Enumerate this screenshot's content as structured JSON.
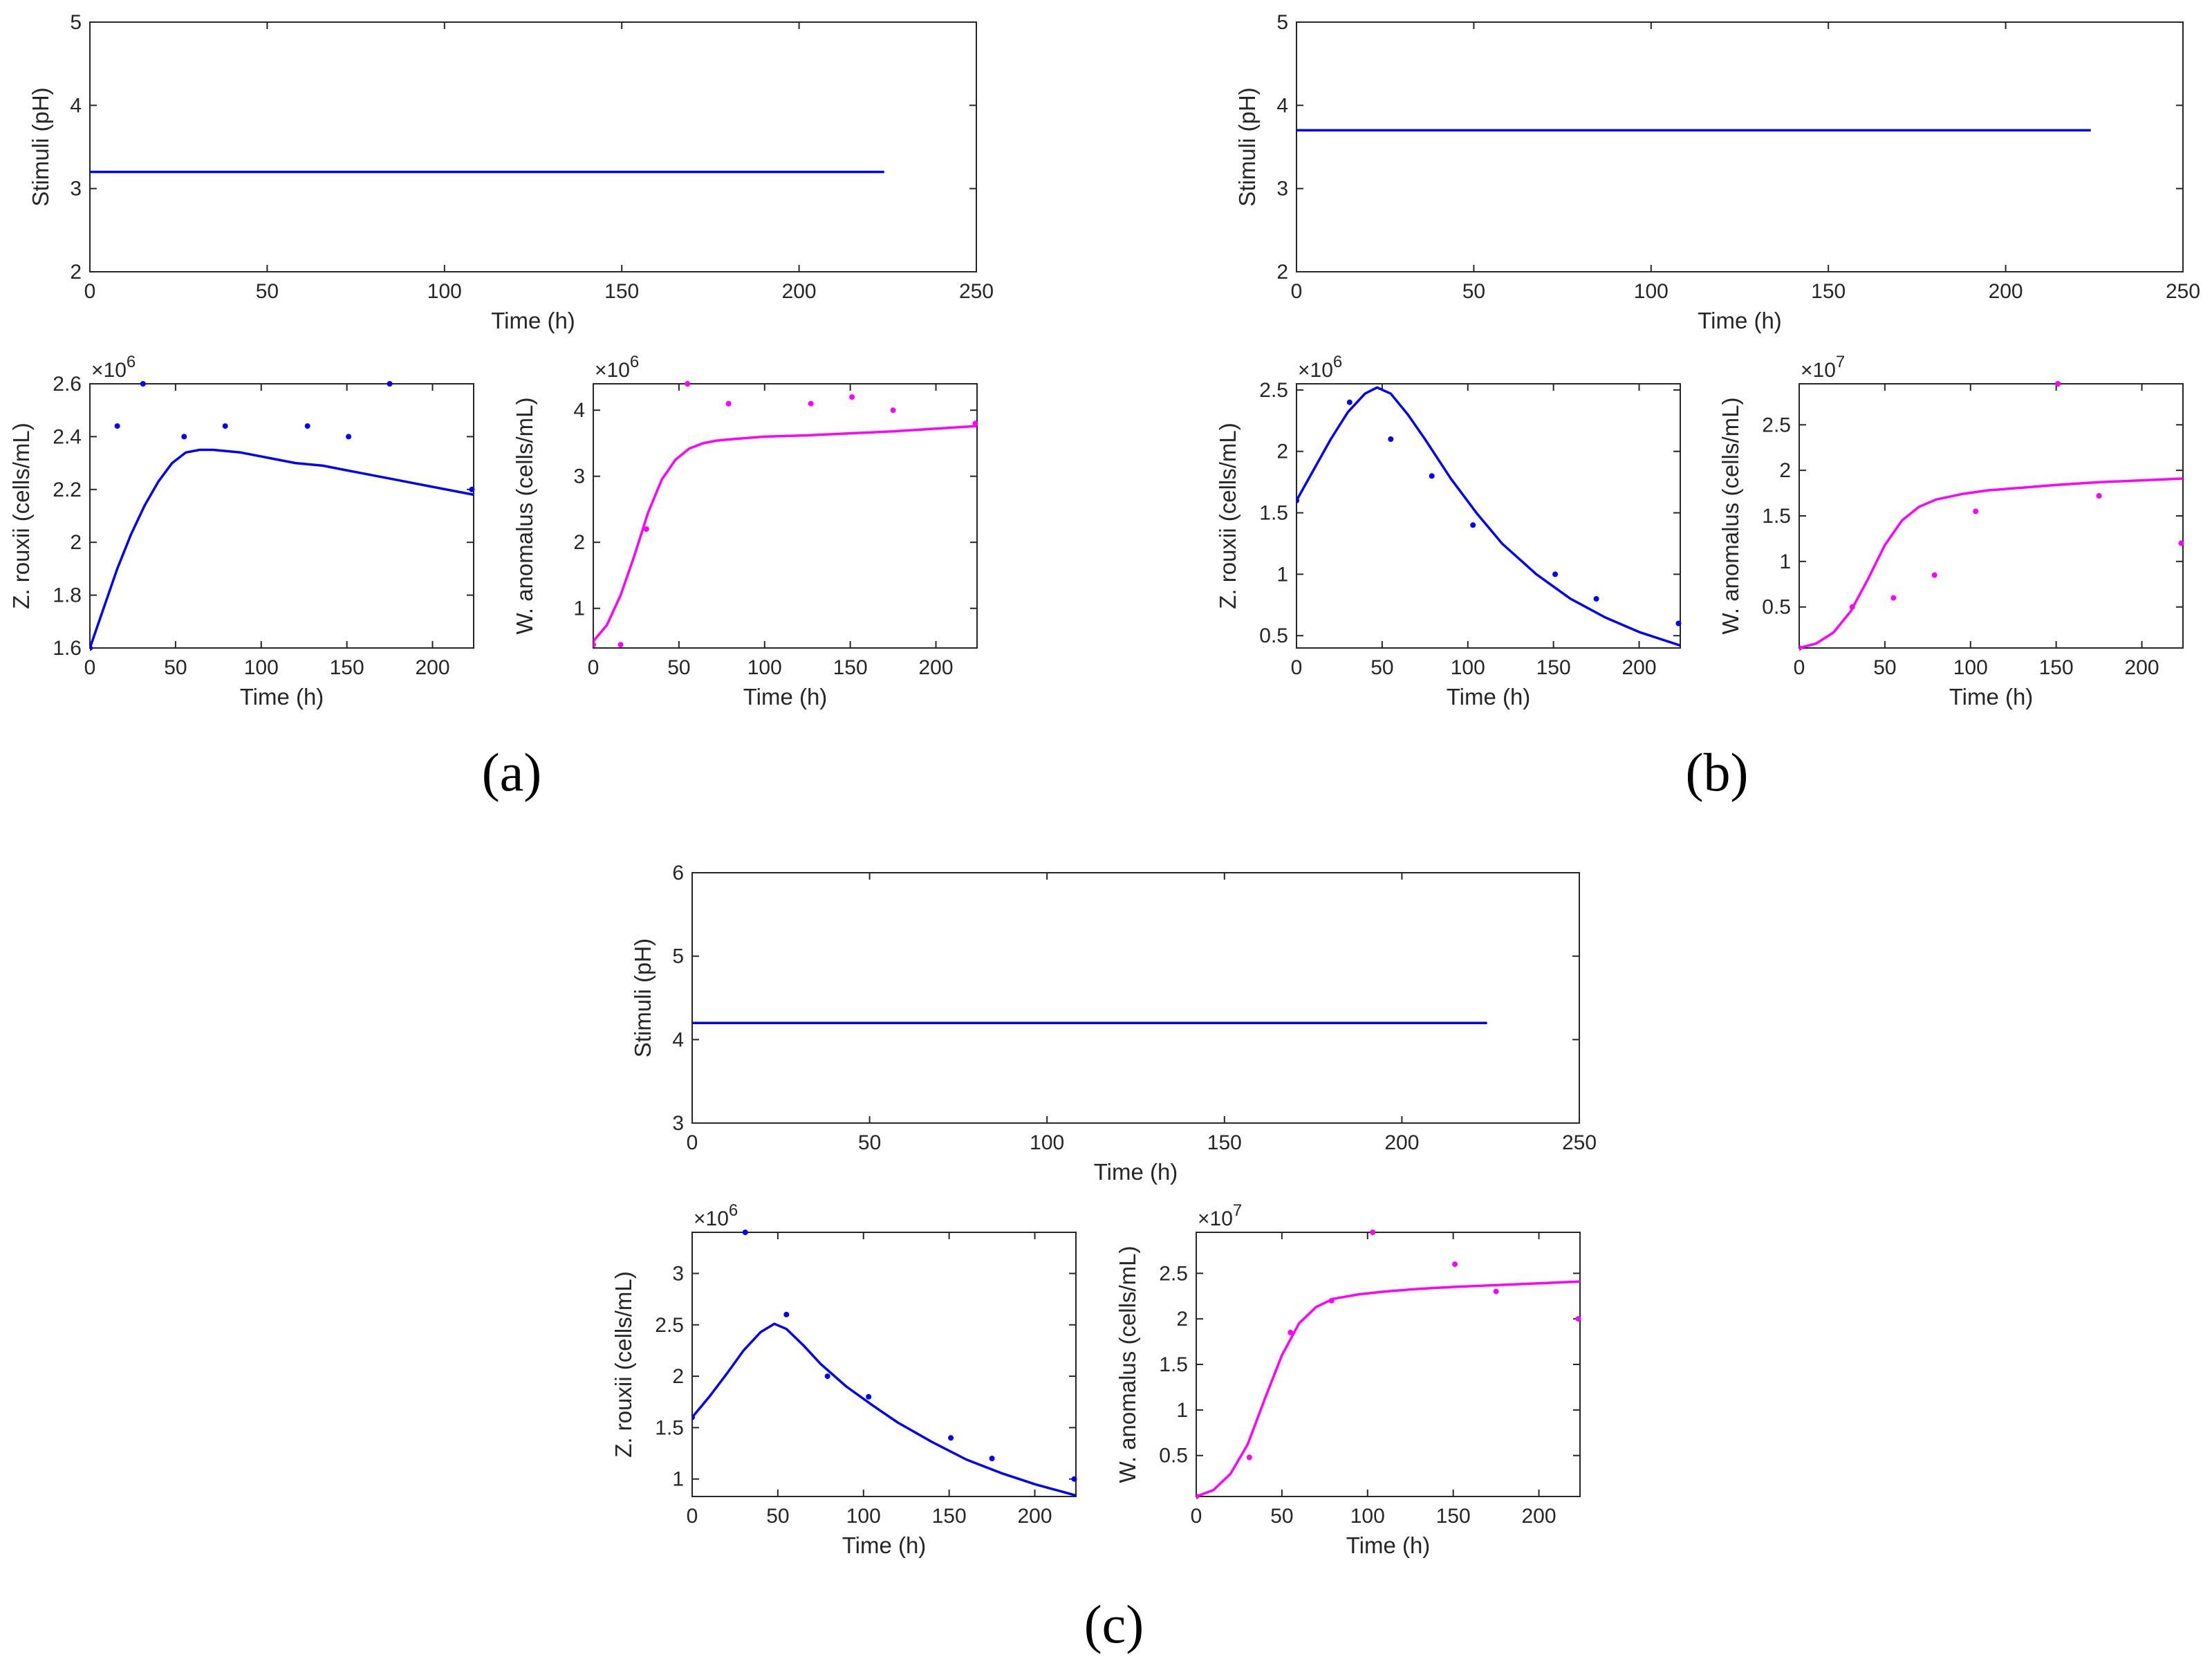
{
  "figure": {
    "panels": [
      {
        "id": "a",
        "label_text": "(a)"
      },
      {
        "id": "b",
        "label_text": "(b)"
      },
      {
        "id": "c",
        "label_text": "(c)"
      }
    ]
  },
  "colors": {
    "zr": "#0000ff",
    "wa": "#ff00ff",
    "stim": "#0000ff",
    "axis": "#262626"
  },
  "chart_data": [
    {
      "id": "a-stim",
      "type": "line",
      "title": "",
      "xlabel": "Time (h)",
      "ylabel": "Stimuli (pH)",
      "xlim": [
        0,
        250
      ],
      "ylim": [
        2,
        5
      ],
      "xticks": [
        0,
        50,
        100,
        150,
        200,
        250
      ],
      "yticks": [
        2,
        3,
        4,
        5
      ],
      "multiplier": "",
      "series": [
        {
          "name": "pH",
          "color": "#0000ff",
          "line": [
            [
              0,
              3.2
            ],
            [
              224,
              3.2
            ]
          ]
        }
      ]
    },
    {
      "id": "a-zr",
      "type": "line",
      "title": "",
      "xlabel": "Time (h)",
      "ylabel": "Z. rouxii (cells/mL)",
      "xlim": [
        0,
        224
      ],
      "ylim": [
        1.6,
        2.6
      ],
      "xticks": [
        0,
        50,
        100,
        150,
        200
      ],
      "yticks": [
        1.6,
        1.8,
        2,
        2.2,
        2.4,
        2.6
      ],
      "multiplier": "6",
      "series": [
        {
          "name": "Z. rouxii",
          "color": "#0000ff",
          "line": [
            [
              0,
              1.6
            ],
            [
              8,
              1.75
            ],
            [
              16,
              1.9
            ],
            [
              24,
              2.03
            ],
            [
              32,
              2.14
            ],
            [
              40,
              2.23
            ],
            [
              48,
              2.3
            ],
            [
              56,
              2.34
            ],
            [
              64,
              2.35
            ],
            [
              72,
              2.35
            ],
            [
              88,
              2.34
            ],
            [
              104,
              2.32
            ],
            [
              120,
              2.3
            ],
            [
              136,
              2.29
            ],
            [
              152,
              2.27
            ],
            [
              168,
              2.25
            ],
            [
              184,
              2.23
            ],
            [
              200,
              2.21
            ],
            [
              224,
              2.18
            ]
          ],
          "points": [
            [
              0,
              1.6
            ],
            [
              16,
              2.44
            ],
            [
              31,
              2.6
            ],
            [
              55,
              2.4
            ],
            [
              79,
              2.44
            ],
            [
              127,
              2.44
            ],
            [
              151,
              2.4
            ],
            [
              175,
              2.6
            ],
            [
              223,
              2.2
            ]
          ]
        }
      ]
    },
    {
      "id": "a-wa",
      "type": "line",
      "title": "",
      "xlabel": "Time (h)",
      "ylabel": "W. anomalus (cells/mL)",
      "xlim": [
        0,
        224
      ],
      "ylim": [
        0.4,
        4.4
      ],
      "xticks": [
        0,
        50,
        100,
        150,
        200
      ],
      "yticks": [
        1,
        2,
        3,
        4
      ],
      "multiplier": "6",
      "series": [
        {
          "name": "W. anomalus",
          "color": "#ff00ff",
          "line": [
            [
              0,
              0.5
            ],
            [
              8,
              0.75
            ],
            [
              16,
              1.2
            ],
            [
              24,
              1.8
            ],
            [
              32,
              2.45
            ],
            [
              40,
              2.95
            ],
            [
              48,
              3.25
            ],
            [
              56,
              3.42
            ],
            [
              64,
              3.5
            ],
            [
              72,
              3.54
            ],
            [
              80,
              3.56
            ],
            [
              100,
              3.6
            ],
            [
              125,
              3.62
            ],
            [
              150,
              3.65
            ],
            [
              175,
              3.68
            ],
            [
              200,
              3.72
            ],
            [
              224,
              3.76
            ]
          ],
          "points": [
            [
              0,
              0.45
            ],
            [
              16,
              0.45
            ],
            [
              31,
              2.2
            ],
            [
              55,
              4.4
            ],
            [
              79,
              4.1
            ],
            [
              127,
              4.1
            ],
            [
              151,
              4.2
            ],
            [
              175,
              4.0
            ],
            [
              223,
              3.8
            ]
          ]
        }
      ]
    },
    {
      "id": "b-stim",
      "type": "line",
      "title": "",
      "xlabel": "Time (h)",
      "ylabel": "Stimuli (pH)",
      "xlim": [
        0,
        250
      ],
      "ylim": [
        2,
        5
      ],
      "xticks": [
        0,
        50,
        100,
        150,
        200,
        250
      ],
      "yticks": [
        2,
        3,
        4,
        5
      ],
      "multiplier": "",
      "series": [
        {
          "name": "pH",
          "color": "#0000ff",
          "line": [
            [
              0,
              3.7
            ],
            [
              224,
              3.7
            ]
          ]
        }
      ]
    },
    {
      "id": "b-zr",
      "type": "line",
      "title": "",
      "xlabel": "Time (h)",
      "ylabel": "Z. rouxii (cells/mL)",
      "xlim": [
        0,
        224
      ],
      "ylim": [
        0.4,
        2.55
      ],
      "xticks": [
        0,
        50,
        100,
        150,
        200
      ],
      "yticks": [
        0.5,
        1,
        1.5,
        2,
        2.5
      ],
      "multiplier": "6",
      "series": [
        {
          "name": "Z. rouxii",
          "color": "#0000ff",
          "line": [
            [
              0,
              1.6
            ],
            [
              10,
              1.85
            ],
            [
              20,
              2.1
            ],
            [
              30,
              2.32
            ],
            [
              40,
              2.47
            ],
            [
              47,
              2.52
            ],
            [
              55,
              2.47
            ],
            [
              65,
              2.3
            ],
            [
              75,
              2.1
            ],
            [
              90,
              1.78
            ],
            [
              105,
              1.5
            ],
            [
              120,
              1.25
            ],
            [
              140,
              1.0
            ],
            [
              160,
              0.8
            ],
            [
              180,
              0.65
            ],
            [
              200,
              0.53
            ],
            [
              224,
              0.42
            ]
          ],
          "points": [
            [
              0,
              1.6
            ],
            [
              31,
              2.4
            ],
            [
              55,
              2.1
            ],
            [
              79,
              1.8
            ],
            [
              103,
              1.4
            ],
            [
              151,
              1.0
            ],
            [
              175,
              0.8
            ],
            [
              223,
              0.6
            ]
          ]
        }
      ]
    },
    {
      "id": "b-wa",
      "type": "line",
      "title": "",
      "xlabel": "Time (h)",
      "ylabel": "W. anomalus (cells/mL)",
      "xlim": [
        0,
        224
      ],
      "ylim": [
        0.05,
        2.95
      ],
      "xticks": [
        0,
        50,
        100,
        150,
        200
      ],
      "yticks": [
        0.5,
        1,
        1.5,
        2,
        2.5
      ],
      "multiplier": "7",
      "series": [
        {
          "name": "W. anomalus",
          "color": "#ff00ff",
          "line": [
            [
              0,
              0.05
            ],
            [
              10,
              0.1
            ],
            [
              20,
              0.22
            ],
            [
              30,
              0.45
            ],
            [
              40,
              0.8
            ],
            [
              50,
              1.18
            ],
            [
              60,
              1.45
            ],
            [
              70,
              1.6
            ],
            [
              80,
              1.68
            ],
            [
              95,
              1.74
            ],
            [
              110,
              1.78
            ],
            [
              130,
              1.81
            ],
            [
              150,
              1.84
            ],
            [
              175,
              1.87
            ],
            [
              200,
              1.89
            ],
            [
              224,
              1.91
            ]
          ],
          "points": [
            [
              0,
              0.05
            ],
            [
              31,
              0.5
            ],
            [
              55,
              0.6
            ],
            [
              79,
              0.85
            ],
            [
              103,
              1.55
            ],
            [
              151,
              2.95
            ],
            [
              175,
              1.72
            ],
            [
              223,
              1.2
            ]
          ]
        }
      ]
    },
    {
      "id": "c-stim",
      "type": "line",
      "title": "",
      "xlabel": "Time (h)",
      "ylabel": "Stimuli (pH)",
      "xlim": [
        0,
        250
      ],
      "ylim": [
        3,
        6
      ],
      "xticks": [
        0,
        50,
        100,
        150,
        200,
        250
      ],
      "yticks": [
        3,
        4,
        5,
        6
      ],
      "multiplier": "",
      "series": [
        {
          "name": "pH",
          "color": "#0000ff",
          "line": [
            [
              0,
              4.2
            ],
            [
              224,
              4.2
            ]
          ]
        }
      ]
    },
    {
      "id": "c-zr",
      "type": "line",
      "title": "",
      "xlabel": "Time (h)",
      "ylabel": "Z. rouxii (cells/mL)",
      "xlim": [
        0,
        224
      ],
      "ylim": [
        0.83,
        3.4
      ],
      "xticks": [
        0,
        50,
        100,
        150,
        200
      ],
      "yticks": [
        1,
        1.5,
        2,
        2.5,
        3
      ],
      "multiplier": "6",
      "series": [
        {
          "name": "Z. rouxii",
          "color": "#0000ff",
          "line": [
            [
              0,
              1.6
            ],
            [
              10,
              1.8
            ],
            [
              20,
              2.02
            ],
            [
              30,
              2.25
            ],
            [
              40,
              2.43
            ],
            [
              48,
              2.51
            ],
            [
              55,
              2.46
            ],
            [
              65,
              2.3
            ],
            [
              75,
              2.12
            ],
            [
              90,
              1.9
            ],
            [
              105,
              1.72
            ],
            [
              120,
              1.55
            ],
            [
              140,
              1.36
            ],
            [
              160,
              1.19
            ],
            [
              180,
              1.06
            ],
            [
              200,
              0.95
            ],
            [
              224,
              0.84
            ]
          ],
          "points": [
            [
              0,
              1.6
            ],
            [
              31,
              3.4
            ],
            [
              55,
              2.6
            ],
            [
              79,
              2.0
            ],
            [
              103,
              1.8
            ],
            [
              151,
              1.4
            ],
            [
              175,
              1.2
            ],
            [
              223,
              1.0
            ]
          ]
        }
      ]
    },
    {
      "id": "c-wa",
      "type": "line",
      "title": "",
      "xlabel": "Time (h)",
      "ylabel": "W. anomalus (cells/mL)",
      "xlim": [
        0,
        224
      ],
      "ylim": [
        0.05,
        2.95
      ],
      "xticks": [
        0,
        50,
        100,
        150,
        200
      ],
      "yticks": [
        0.5,
        1,
        1.5,
        2,
        2.5
      ],
      "multiplier": "7",
      "series": [
        {
          "name": "W. anomalus",
          "color": "#ff00ff",
          "line": [
            [
              0,
              0.05
            ],
            [
              10,
              0.12
            ],
            [
              20,
              0.3
            ],
            [
              30,
              0.62
            ],
            [
              40,
              1.12
            ],
            [
              50,
              1.6
            ],
            [
              60,
              1.95
            ],
            [
              70,
              2.13
            ],
            [
              80,
              2.22
            ],
            [
              95,
              2.27
            ],
            [
              110,
              2.3
            ],
            [
              130,
              2.33
            ],
            [
              150,
              2.35
            ],
            [
              175,
              2.37
            ],
            [
              200,
              2.39
            ],
            [
              224,
              2.41
            ]
          ],
          "points": [
            [
              0,
              0.05
            ],
            [
              31,
              0.48
            ],
            [
              55,
              1.85
            ],
            [
              79,
              2.2
            ],
            [
              103,
              2.95
            ],
            [
              151,
              2.6
            ],
            [
              175,
              2.3
            ],
            [
              223,
              2.0
            ]
          ]
        }
      ]
    }
  ]
}
